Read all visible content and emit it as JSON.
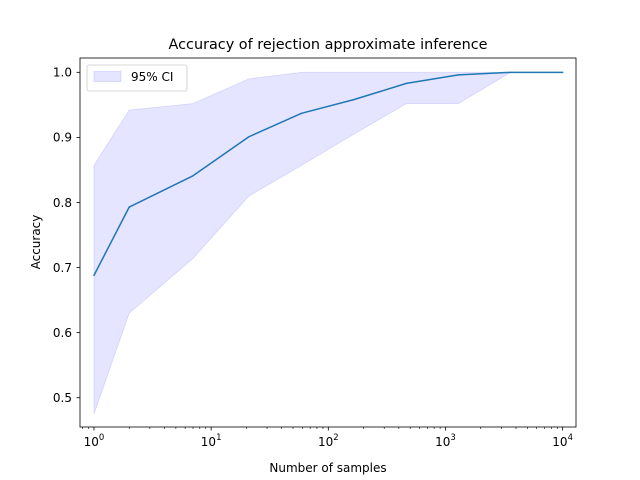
{
  "chart_data": {
    "type": "line",
    "title": "Accuracy of rejection approximate inference",
    "xlabel": "Number of samples",
    "ylabel": "Accuracy",
    "x_scale": "log",
    "xlim": [
      0.76,
      13000
    ],
    "ylim": [
      0.455,
      1.022
    ],
    "grid": false,
    "legend_placement": "top-left",
    "x_ticks": [
      {
        "value": 1,
        "base": "10",
        "exp": "0"
      },
      {
        "value": 10,
        "base": "10",
        "exp": "1"
      },
      {
        "value": 100,
        "base": "10",
        "exp": "2"
      },
      {
        "value": 1000,
        "base": "10",
        "exp": "3"
      },
      {
        "value": 10000,
        "base": "10",
        "exp": "4"
      }
    ],
    "y_ticks": [
      {
        "value": 0.5,
        "label": "0.5"
      },
      {
        "value": 0.6,
        "label": "0.6"
      },
      {
        "value": 0.7,
        "label": "0.7"
      },
      {
        "value": 0.8,
        "label": "0.8"
      },
      {
        "value": 0.9,
        "label": "0.9"
      },
      {
        "value": 1.0,
        "label": "1.0"
      }
    ],
    "x": [
      1,
      2,
      7,
      21,
      59,
      165,
      464,
      1291,
      3593,
      10000
    ],
    "series": [
      {
        "values": [
          0.688,
          0.793,
          0.841,
          0.901,
          0.937,
          0.958,
          0.983,
          0.996,
          1.0,
          1.0
        ],
        "color": "#1f77b4"
      }
    ],
    "band": {
      "name": "95% CI",
      "lower": [
        0.475,
        0.63,
        0.714,
        0.81,
        0.857,
        0.905,
        0.952,
        0.952,
        1.0,
        1.0
      ],
      "upper": [
        0.857,
        0.942,
        0.952,
        0.99,
        1.0,
        1.0,
        1.0,
        1.0,
        1.0,
        1.0
      ],
      "color": "#0000ff",
      "opacity": 0.1
    }
  }
}
